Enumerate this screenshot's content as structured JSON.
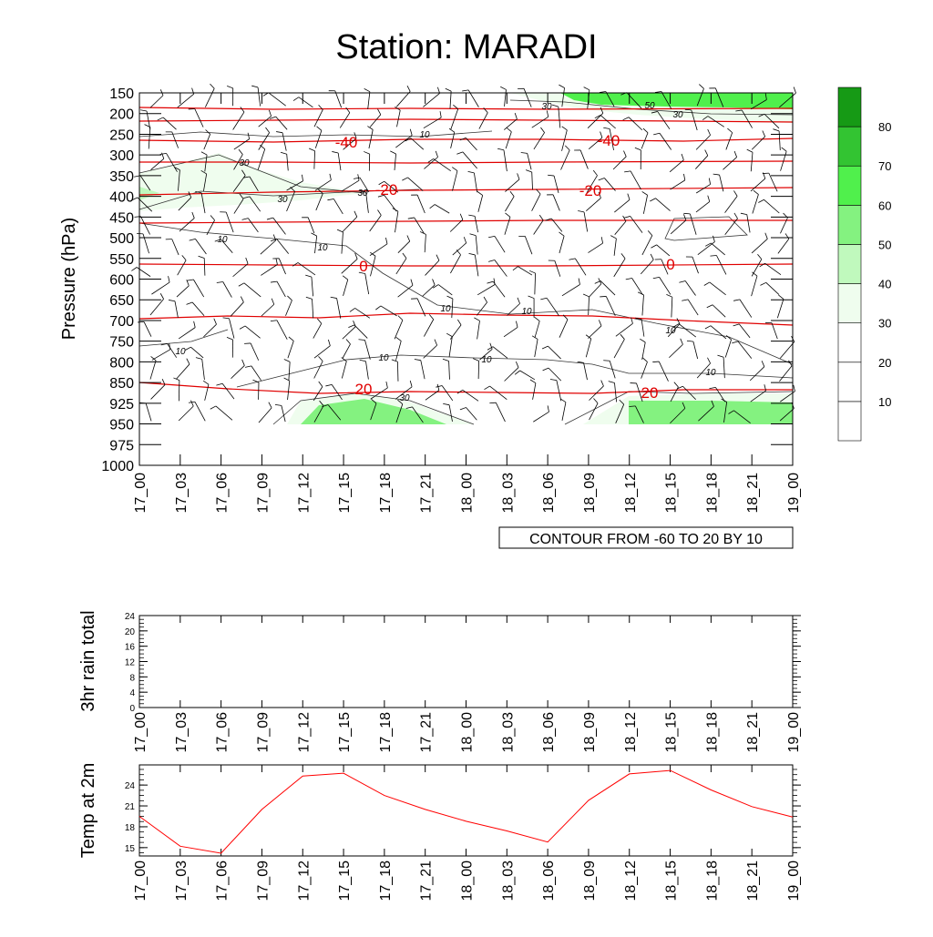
{
  "page_title": "Station: MARADI",
  "time_labels": [
    "17_00",
    "17_03",
    "17_06",
    "17_09",
    "17_12",
    "17_15",
    "17_18",
    "17_21",
    "18_00",
    "18_03",
    "18_06",
    "18_09",
    "18_12",
    "18_15",
    "18_18",
    "18_21",
    "19_00"
  ],
  "chart_data": [
    {
      "type": "contour",
      "title": "Station: MARADI",
      "ylabel": "Pressure (hPa)",
      "y_reversed": true,
      "pressure_levels": [
        150,
        200,
        250,
        300,
        350,
        400,
        450,
        500,
        550,
        600,
        650,
        700,
        750,
        800,
        850,
        925,
        950,
        975,
        1000
      ],
      "pressure_tick_labels": [
        "150",
        "200",
        "250",
        "300",
        "350",
        "400",
        "450",
        "500",
        "550",
        "600",
        "650",
        "700",
        "750",
        "800",
        "850",
        "925",
        "950",
        "975",
        "1000"
      ],
      "info_label": "CONTOUR FROM -60 TO 20 BY 10",
      "colorbar": {
        "ticks": [
          "10",
          "20",
          "30",
          "40",
          "50",
          "60",
          "70",
          "80"
        ],
        "fills": [
          "#ffffff",
          "#ffffff",
          "#ffffff",
          "#effdee",
          "#c0f9bd",
          "#84f280",
          "#50f04c",
          "#33c432",
          "#169a15"
        ]
      },
      "temperature_contours": [
        {
          "value": -40,
          "label": "-40",
          "pressure": 260
        },
        {
          "value": -30,
          "label": "",
          "pressure": 315
        },
        {
          "value": -20,
          "label": "-20",
          "pressure": 382
        },
        {
          "value": -10,
          "label": "",
          "pressure": 462
        },
        {
          "value": 0,
          "label": "0",
          "pressure": 562
        },
        {
          "value": 10,
          "label": "",
          "pressure": 690
        },
        {
          "value": 20,
          "label": "20",
          "pressure": 862
        }
      ],
      "contour_labels": {
        "red": [
          "-40",
          "-40",
          "-20",
          "-20",
          "0",
          "0",
          "20",
          "20"
        ],
        "black": [
          "10",
          "10",
          "10",
          "10",
          "10",
          "10",
          "10",
          "10",
          "10",
          "10",
          "30",
          "30",
          "30",
          "30",
          "30",
          "30",
          "50"
        ]
      }
    },
    {
      "type": "line",
      "ylabel": "3hr rain total",
      "ylim": [
        0,
        24
      ],
      "y_ticks": [
        "0",
        "4",
        "8",
        "12",
        "16",
        "20",
        "24"
      ],
      "categories": [
        "17_00",
        "17_03",
        "17_06",
        "17_09",
        "17_12",
        "17_15",
        "17_18",
        "17_21",
        "18_00",
        "18_03",
        "18_06",
        "18_09",
        "18_12",
        "18_15",
        "18_18",
        "18_21",
        "19_00"
      ],
      "values": [
        0,
        0,
        0,
        0,
        0,
        0,
        0,
        0,
        0,
        0,
        0,
        0,
        0,
        0,
        0,
        0,
        0
      ]
    },
    {
      "type": "line",
      "ylabel": "Temp at 2m",
      "ylim": [
        13.8,
        26.9
      ],
      "y_ticks": [
        "15",
        "18",
        "21",
        "24"
      ],
      "categories": [
        "17_00",
        "17_03",
        "17_06",
        "17_09",
        "17_12",
        "17_15",
        "17_18",
        "17_21",
        "18_00",
        "18_03",
        "18_06",
        "18_09",
        "18_12",
        "18_15",
        "18_18",
        "18_21",
        "19_00"
      ],
      "values": [
        19.5,
        15.2,
        14.2,
        20.5,
        25.3,
        25.7,
        22.5,
        20.5,
        18.8,
        17.4,
        15.8,
        21.8,
        25.6,
        26.1,
        23.3,
        20.9,
        19.4
      ],
      "color": "#ff0000"
    }
  ]
}
